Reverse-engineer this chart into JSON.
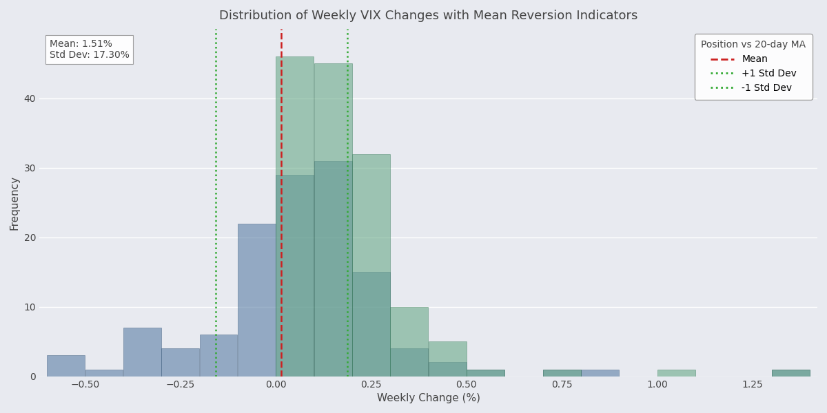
{
  "title": "Distribution of Weekly VIX Changes with Mean Reversion Indicators",
  "xlabel": "Weekly Change (%)",
  "ylabel": "Frequency",
  "mean": 0.0151,
  "std_dev": 0.173,
  "background_color": "#e8eaf0",
  "text_color": "#444444",
  "legend_title": "Position vs 20-day MA",
  "stats_box_text": "Mean: 1.51%\nStd Dev: 17.30%",
  "series1_color": "#5b7fa6",
  "series1_alpha": 0.6,
  "series2_color": "#6aaa8a",
  "series2_alpha": 0.6,
  "bin_edges": [
    -0.6,
    -0.5,
    -0.4,
    -0.3,
    -0.2,
    -0.1,
    0.0,
    0.1,
    0.2,
    0.3,
    0.4,
    0.5,
    0.6,
    0.7,
    0.8,
    0.9,
    1.0,
    1.1,
    1.2,
    1.3,
    1.4
  ],
  "series1_counts": [
    3,
    1,
    7,
    4,
    6,
    22,
    29,
    31,
    15,
    4,
    2,
    1,
    0,
    1,
    1,
    0,
    0,
    0,
    0,
    1
  ],
  "series2_counts": [
    0,
    0,
    0,
    0,
    0,
    0,
    46,
    45,
    32,
    10,
    5,
    1,
    0,
    1,
    0,
    0,
    1,
    0,
    0,
    1
  ],
  "mean_line_color": "#cc2222",
  "std_line_color": "#33aa33",
  "vline_lw": 1.8,
  "xlim": [
    -0.62,
    1.42
  ],
  "ylim": [
    0,
    50
  ],
  "yticks": [
    0,
    10,
    20,
    30,
    40
  ],
  "figsize": [
    12.0,
    6.0
  ],
  "dpi": 100
}
